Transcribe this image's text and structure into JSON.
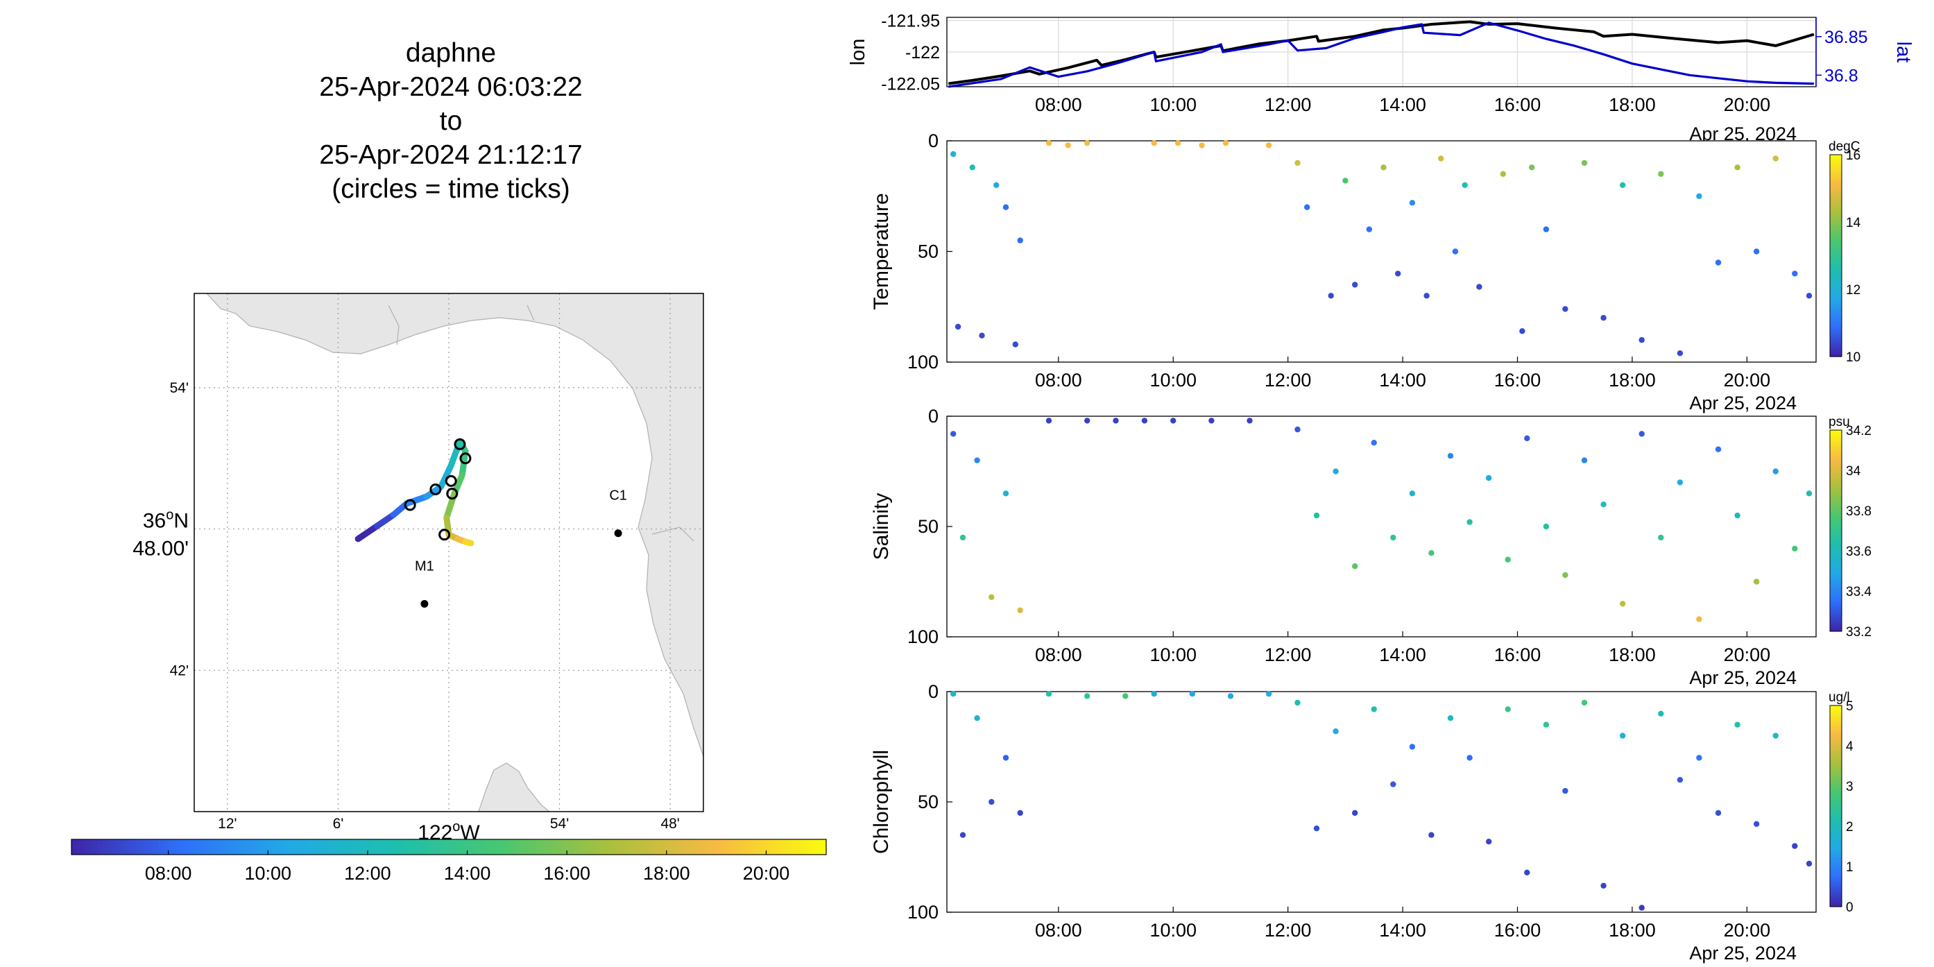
{
  "header": {
    "vehicle": "daphne",
    "start": "25-Apr-2024 06:03:22",
    "connector": "to",
    "end": "25-Apr-2024 21:12:17",
    "note": "(circles = time ticks)"
  },
  "chart_data": [
    {
      "type": "map",
      "xlabel_base": "122",
      "xlabel_sup": "o",
      "xlabel_end": "W",
      "lon_ticks": [
        "12'",
        "6'",
        "54'",
        "48'"
      ],
      "lat_ticks": [
        "54'",
        "42'"
      ],
      "lat_center_label": {
        "base": "36",
        "sup": "o",
        "end": "N",
        "min": "48.00'"
      },
      "grid": true,
      "stations": [
        {
          "name": "C1",
          "lat": 36.797,
          "lon": -121.847
        },
        {
          "name": "M1",
          "lat": 36.747,
          "lon": -122.022
        }
      ],
      "track": [
        {
          "t": "06:05",
          "lat": 36.793,
          "lon": -122.082
        },
        {
          "t": "07:00",
          "lat": 36.802,
          "lon": -122.065
        },
        {
          "t": "08:00",
          "lat": 36.81,
          "lon": -122.05
        },
        {
          "t": "09:00",
          "lat": 36.818,
          "lon": -122.038
        },
        {
          "t": "10:00",
          "lat": 36.823,
          "lon": -122.02
        },
        {
          "t": "11:00",
          "lat": 36.83,
          "lon": -122.007
        },
        {
          "t": "12:00",
          "lat": 36.845,
          "lon": -121.998
        },
        {
          "t": "13:00",
          "lat": 36.862,
          "lon": -121.99
        },
        {
          "t": "14:00",
          "lat": 36.855,
          "lon": -121.985
        },
        {
          "t": "15:00",
          "lat": 36.838,
          "lon": -121.988
        },
        {
          "t": "16:00",
          "lat": 36.825,
          "lon": -121.995
        },
        {
          "t": "17:00",
          "lat": 36.808,
          "lon": -122.002
        },
        {
          "t": "18:00",
          "lat": 36.796,
          "lon": -122.0
        },
        {
          "t": "19:00",
          "lat": 36.793,
          "lon": -121.992
        },
        {
          "t": "20:00",
          "lat": 36.791,
          "lon": -121.985
        },
        {
          "t": "21:10",
          "lat": 36.79,
          "lon": -121.98
        }
      ],
      "time_ticks": [
        {
          "lat": 36.817,
          "lon": -122.035
        },
        {
          "lat": 36.828,
          "lon": -122.012
        },
        {
          "lat": 36.834,
          "lon": -121.998
        },
        {
          "lat": 36.86,
          "lon": -121.99
        },
        {
          "lat": 36.85,
          "lon": -121.985
        },
        {
          "lat": 36.825,
          "lon": -121.997
        },
        {
          "lat": 36.796,
          "lon": -122.004
        }
      ],
      "colorbar_ticks": [
        "08:00",
        "10:00",
        "12:00",
        "14:00",
        "16:00",
        "18:00",
        "20:00"
      ],
      "colormap": [
        "#3e26a8",
        "#2f6ffa",
        "#22a9e6",
        "#1dbfae",
        "#49c76f",
        "#a9c03d",
        "#f8ba43",
        "#f9fb0e"
      ]
    },
    {
      "type": "line",
      "ylabel": "lon",
      "ylabel_right": "lat",
      "yticks": [
        "-121.95",
        "-122",
        "-122.05"
      ],
      "yticks_right": [
        "36.85",
        "36.8"
      ],
      "xticks": [
        "08:00",
        "10:00",
        "12:00",
        "14:00",
        "16:00",
        "18:00",
        "20:00"
      ],
      "xdate": "Apr 25, 2024",
      "ylim": [
        -122.055,
        -121.945
      ],
      "ylim_right": [
        36.785,
        36.875
      ],
      "series": [
        {
          "axis": "left",
          "color": "#000000",
          "x": [
            "06:05",
            "06:30",
            "07:00",
            "07:30",
            "07:40",
            "08:10",
            "08:40",
            "08:45",
            "09:10",
            "09:40",
            "09:42",
            "10:20",
            "10:50",
            "10:52",
            "11:30",
            "12:00",
            "12:30",
            "12:32",
            "13:10",
            "13:40",
            "14:00",
            "14:30",
            "15:10",
            "15:30",
            "16:00",
            "16:40",
            "17:20",
            "17:30",
            "18:00",
            "18:40",
            "19:30",
            "20:00",
            "20:30",
            "21:10"
          ],
          "y": [
            -122.05,
            -122.045,
            -122.038,
            -122.03,
            -122.035,
            -122.025,
            -122.013,
            -122.021,
            -122.012,
            -122.0,
            -122.008,
            -121.998,
            -121.99,
            -121.998,
            -121.987,
            -121.982,
            -121.975,
            -121.983,
            -121.975,
            -121.965,
            -121.962,
            -121.956,
            -121.952,
            -121.956,
            -121.955,
            -121.962,
            -121.968,
            -121.975,
            -121.972,
            -121.978,
            -121.985,
            -121.982,
            -121.99,
            -121.972
          ]
        },
        {
          "axis": "right",
          "color": "#0000cc",
          "x": [
            "06:05",
            "07:00",
            "07:30",
            "08:00",
            "08:30",
            "09:00",
            "09:40",
            "09:42",
            "10:30",
            "10:50",
            "10:52",
            "11:40",
            "12:00",
            "12:10",
            "12:40",
            "13:10",
            "13:40",
            "14:00",
            "14:20",
            "14:22",
            "15:00",
            "15:30",
            "16:00",
            "16:30",
            "17:00",
            "17:30",
            "18:00",
            "18:40",
            "19:00",
            "19:30",
            "20:00",
            "20:30",
            "21:10"
          ],
          "y": [
            36.785,
            36.795,
            36.81,
            36.798,
            36.805,
            36.815,
            36.83,
            36.818,
            36.83,
            36.84,
            36.83,
            36.84,
            36.845,
            36.832,
            36.835,
            36.848,
            36.856,
            36.862,
            36.866,
            36.855,
            36.852,
            36.868,
            36.858,
            36.847,
            36.838,
            36.827,
            36.815,
            36.805,
            36.8,
            36.796,
            36.792,
            36.79,
            36.789
          ]
        }
      ]
    },
    {
      "type": "scatter",
      "ylabel": "Temperature",
      "units": "degC",
      "yticks": [
        "0",
        "50",
        "100"
      ],
      "ylim": [
        100,
        0
      ],
      "xticks": [
        "08:00",
        "10:00",
        "12:00",
        "14:00",
        "16:00",
        "18:00",
        "20:00"
      ],
      "xdate": "Apr 25, 2024",
      "cticks": [
        "16",
        "14",
        "12",
        "10"
      ],
      "clim": [
        9,
        16
      ],
      "x": [
        "06:10",
        "06:15",
        "06:30",
        "06:40",
        "06:55",
        "07:05",
        "07:15",
        "07:20",
        "07:50",
        "08:10",
        "08:30",
        "09:40",
        "10:05",
        "10:30",
        "10:55",
        "11:40",
        "12:10",
        "12:20",
        "12:45",
        "13:00",
        "13:10",
        "13:25",
        "13:40",
        "13:55",
        "14:10",
        "14:25",
        "14:40",
        "14:55",
        "15:05",
        "15:20",
        "15:45",
        "16:05",
        "16:15",
        "16:30",
        "16:50",
        "17:10",
        "17:30",
        "17:50",
        "18:10",
        "18:30",
        "18:50",
        "19:10",
        "19:30",
        "19:50",
        "20:10",
        "20:30",
        "20:50",
        "21:05"
      ],
      "y": [
        6,
        84,
        12,
        88,
        20,
        30,
        92,
        45,
        1,
        2,
        1,
        1,
        1,
        2,
        1,
        2,
        10,
        30,
        70,
        18,
        65,
        40,
        12,
        60,
        28,
        70,
        8,
        50,
        20,
        66,
        15,
        86,
        12,
        40,
        76,
        10,
        80,
        20,
        90,
        15,
        96,
        25,
        55,
        12,
        50,
        8,
        60,
        70
      ],
      "c": [
        11.5,
        9.5,
        12,
        9.5,
        11,
        10,
        9.5,
        10,
        15,
        15,
        15,
        15,
        15,
        15,
        15,
        15,
        14.5,
        10,
        9.5,
        13,
        9.5,
        10,
        14,
        9.5,
        10.5,
        9.5,
        14.5,
        10,
        12,
        9.5,
        14,
        9.5,
        13.5,
        10,
        9.5,
        13.5,
        9.5,
        12,
        9.5,
        13.5,
        9.5,
        11,
        10,
        14,
        10,
        14.5,
        10,
        9.5
      ]
    },
    {
      "type": "scatter",
      "ylabel": "Salinity",
      "units": "psu",
      "yticks": [
        "0",
        "50",
        "100"
      ],
      "ylim": [
        100,
        0
      ],
      "xticks": [
        "08:00",
        "10:00",
        "12:00",
        "14:00",
        "16:00",
        "18:00",
        "20:00"
      ],
      "xdate": "Apr 25, 2024",
      "cticks": [
        "34.2",
        "34",
        "33.8",
        "33.6",
        "33.4",
        "33.2"
      ],
      "clim": [
        33.2,
        34.2
      ],
      "x": [
        "06:10",
        "06:20",
        "06:35",
        "06:50",
        "07:05",
        "07:20",
        "07:50",
        "08:30",
        "09:00",
        "09:30",
        "10:00",
        "10:40",
        "11:20",
        "12:10",
        "12:30",
        "12:50",
        "13:10",
        "13:30",
        "13:50",
        "14:10",
        "14:30",
        "14:50",
        "15:10",
        "15:30",
        "15:50",
        "16:10",
        "16:30",
        "16:50",
        "17:10",
        "17:30",
        "17:50",
        "18:10",
        "18:30",
        "18:50",
        "19:10",
        "19:30",
        "19:50",
        "20:10",
        "20:30",
        "20:50",
        "21:05"
      ],
      "y": [
        8,
        55,
        20,
        82,
        35,
        88,
        2,
        2,
        2,
        2,
        2,
        2,
        2,
        6,
        45,
        25,
        68,
        12,
        55,
        35,
        62,
        18,
        48,
        28,
        65,
        10,
        50,
        72,
        20,
        40,
        85,
        8,
        55,
        30,
        92,
        15,
        45,
        75,
        25,
        60,
        35
      ],
      "c": [
        33.3,
        33.7,
        33.4,
        33.95,
        33.55,
        34.0,
        33.25,
        33.25,
        33.25,
        33.25,
        33.25,
        33.25,
        33.25,
        33.3,
        33.65,
        33.5,
        33.8,
        33.35,
        33.7,
        33.55,
        33.75,
        33.4,
        33.65,
        33.5,
        33.75,
        33.3,
        33.65,
        33.85,
        33.4,
        33.6,
        33.95,
        33.3,
        33.7,
        33.5,
        34.05,
        33.35,
        33.6,
        33.9,
        33.45,
        33.75,
        33.6
      ]
    },
    {
      "type": "scatter",
      "ylabel": "Chlorophyll",
      "units": "ug/l",
      "yticks": [
        "0",
        "50",
        "100"
      ],
      "ylim": [
        100,
        0
      ],
      "xticks": [
        "08:00",
        "10:00",
        "12:00",
        "14:00",
        "16:00",
        "18:00",
        "20:00"
      ],
      "xdate": "Apr 25, 2024",
      "cticks": [
        "5",
        "4",
        "3",
        "2",
        "1",
        "0"
      ],
      "clim": [
        0,
        5
      ],
      "x": [
        "06:10",
        "06:20",
        "06:35",
        "06:50",
        "07:05",
        "07:20",
        "07:50",
        "08:30",
        "09:10",
        "09:40",
        "10:20",
        "11:00",
        "11:40",
        "12:10",
        "12:30",
        "12:50",
        "13:10",
        "13:30",
        "13:50",
        "14:10",
        "14:30",
        "14:50",
        "15:10",
        "15:30",
        "15:50",
        "16:10",
        "16:30",
        "16:50",
        "17:10",
        "17:30",
        "17:50",
        "18:10",
        "18:30",
        "18:50",
        "19:10",
        "19:30",
        "19:50",
        "20:10",
        "20:30",
        "20:50",
        "21:05"
      ],
      "y": [
        1,
        65,
        12,
        50,
        30,
        55,
        1,
        2,
        2,
        1,
        1,
        2,
        1,
        5,
        62,
        18,
        55,
        8,
        42,
        25,
        65,
        12,
        30,
        68,
        8,
        82,
        15,
        45,
        5,
        88,
        20,
        98,
        10,
        40,
        30,
        55,
        15,
        60,
        20,
        70,
        78
      ],
      "c": [
        1.8,
        0.3,
        1.8,
        0.4,
        0.6,
        0.3,
        2.2,
        2.4,
        2.8,
        1.6,
        1.4,
        1.5,
        1.6,
        2.0,
        0.4,
        1.5,
        0.3,
        2.2,
        0.5,
        0.8,
        0.3,
        2.0,
        0.7,
        0.3,
        2.6,
        0.3,
        2.4,
        0.5,
        2.8,
        0.3,
        1.6,
        0.2,
        2.1,
        0.5,
        0.8,
        0.4,
        2.2,
        0.4,
        2.0,
        0.3,
        0.3
      ]
    }
  ]
}
